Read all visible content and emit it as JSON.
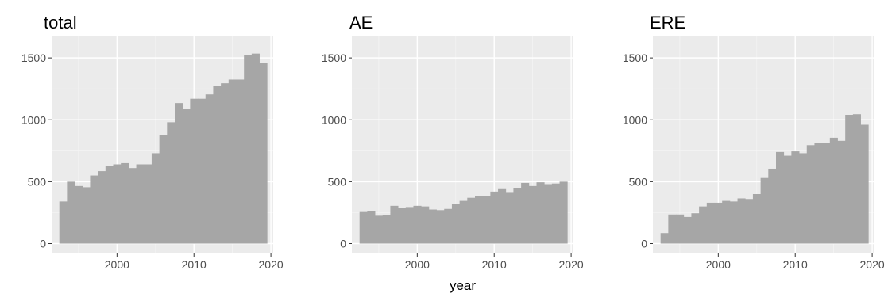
{
  "colors": {
    "panel_background": "#ebebeb",
    "grid_major": "#ffffff",
    "bar_fill": "#a6a6a6",
    "tick_text": "#4d4d4d",
    "tick_mark": "#333333"
  },
  "chart_data": [
    {
      "type": "bar",
      "title": "total",
      "xlabel": "",
      "ylabel": "",
      "xlim": [
        1991.5,
        2020.3
      ],
      "ylim": [
        -80,
        1680
      ],
      "x_ticks": [
        2000,
        2010,
        2020
      ],
      "y_ticks": [
        0,
        500,
        1000,
        1500
      ],
      "x_tick_labels": [
        "2000",
        "2010",
        "2020"
      ],
      "y_tick_labels": [
        "0",
        "500",
        "1000",
        "1500"
      ],
      "grid": true,
      "bin_start": 1992.5,
      "bin_width": 1,
      "years": [
        1993,
        1994,
        1995,
        1996,
        1997,
        1998,
        1999,
        2000,
        2001,
        2002,
        2003,
        2004,
        2005,
        2006,
        2007,
        2008,
        2009,
        2010,
        2011,
        2012,
        2013,
        2014,
        2015,
        2016,
        2017,
        2018,
        2019
      ],
      "values": [
        340,
        500,
        465,
        455,
        550,
        585,
        630,
        640,
        650,
        610,
        640,
        640,
        730,
        880,
        980,
        1135,
        1090,
        1170,
        1170,
        1205,
        1275,
        1295,
        1325,
        1325,
        1525,
        1535,
        1460
      ]
    },
    {
      "type": "bar",
      "title": "AE",
      "xlabel": "year",
      "ylabel": "",
      "xlim": [
        1991.5,
        2020.3
      ],
      "ylim": [
        -80,
        1680
      ],
      "x_ticks": [
        2000,
        2010,
        2020
      ],
      "y_ticks": [
        0,
        500,
        1000,
        1500
      ],
      "x_tick_labels": [
        "2000",
        "2010",
        "2020"
      ],
      "y_tick_labels": [
        "0",
        "500",
        "1000",
        "1500"
      ],
      "grid": true,
      "bin_start": 1992.5,
      "bin_width": 1,
      "years": [
        1993,
        1994,
        1995,
        1996,
        1997,
        1998,
        1999,
        2000,
        2001,
        2002,
        2003,
        2004,
        2005,
        2006,
        2007,
        2008,
        2009,
        2010,
        2011,
        2012,
        2013,
        2014,
        2015,
        2016,
        2017,
        2018,
        2019
      ],
      "values": [
        255,
        265,
        225,
        230,
        305,
        285,
        295,
        305,
        300,
        275,
        270,
        280,
        320,
        345,
        370,
        385,
        385,
        420,
        440,
        410,
        450,
        490,
        465,
        495,
        480,
        485,
        500
      ]
    },
    {
      "type": "bar",
      "title": "ERE",
      "xlabel": "",
      "ylabel": "",
      "xlim": [
        1991.5,
        2020.3
      ],
      "ylim": [
        -80,
        1680
      ],
      "x_ticks": [
        2000,
        2010,
        2020
      ],
      "y_ticks": [
        0,
        500,
        1000,
        1500
      ],
      "x_tick_labels": [
        "2000",
        "2010",
        "2020"
      ],
      "y_tick_labels": [
        "0",
        "500",
        "1000",
        "1500"
      ],
      "grid": true,
      "bin_start": 1992.5,
      "bin_width": 1,
      "years": [
        1993,
        1994,
        1995,
        1996,
        1997,
        1998,
        1999,
        2000,
        2001,
        2002,
        2003,
        2004,
        2005,
        2006,
        2007,
        2008,
        2009,
        2010,
        2011,
        2012,
        2013,
        2014,
        2015,
        2016,
        2017,
        2018,
        2019
      ],
      "values": [
        85,
        235,
        235,
        215,
        245,
        300,
        330,
        330,
        345,
        340,
        365,
        360,
        400,
        530,
        605,
        740,
        710,
        745,
        730,
        795,
        815,
        810,
        855,
        830,
        1040,
        1045,
        960
      ]
    }
  ]
}
